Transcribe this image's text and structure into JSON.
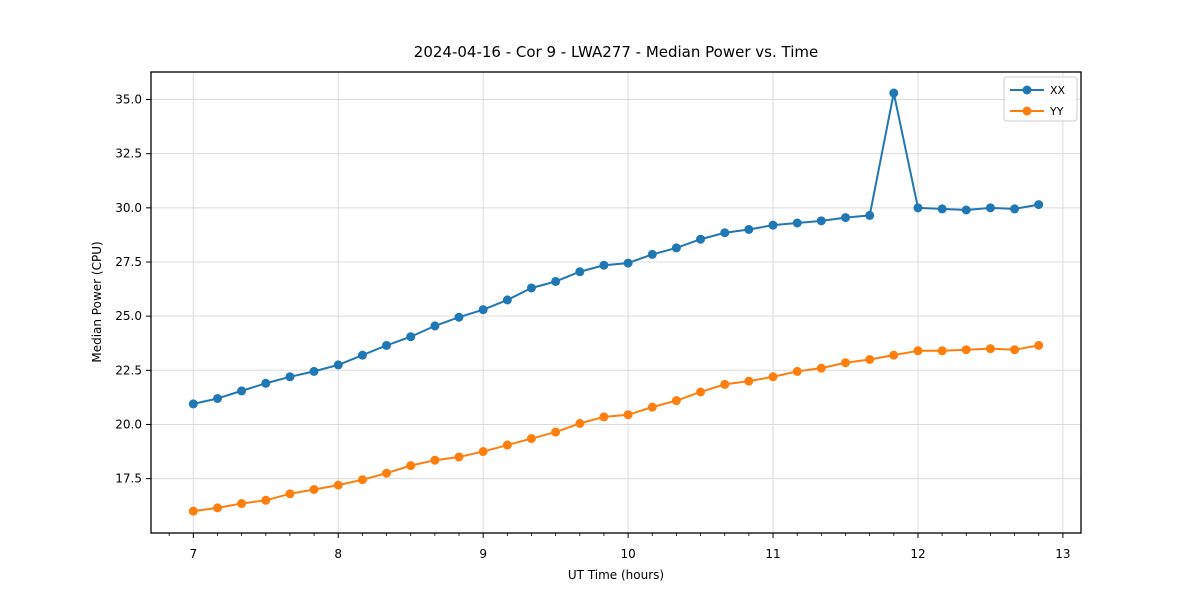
{
  "figure": {
    "title": "2024-04-16 - Cor 9 - LWA277 - Median Power vs. Time",
    "xlabel": "UT Time (hours)",
    "ylabel": "Median Power (CPU)"
  },
  "chart_data": {
    "type": "line",
    "title": "2024-04-16 - Cor 9 - LWA277 - Median Power vs. Time",
    "xlabel": "UT Time (hours)",
    "ylabel": "Median Power (CPU)",
    "xlim": [
      6.708,
      13.125
    ],
    "ylim": [
      14.99,
      36.27
    ],
    "xticks": [
      7,
      8,
      9,
      10,
      11,
      12,
      13
    ],
    "yticks": [
      17.5,
      20.0,
      22.5,
      25.0,
      27.5,
      30.0,
      32.5,
      35.0
    ],
    "minor_xtick_step": 0.16667,
    "grid": true,
    "legend_position": "upper right",
    "background_color": "#ffffff",
    "grid_color": "#dcdcdc",
    "spine_color": "#000000",
    "x": [
      7.0,
      7.167,
      7.333,
      7.5,
      7.667,
      7.833,
      8.0,
      8.167,
      8.333,
      8.5,
      8.667,
      8.833,
      9.0,
      9.167,
      9.333,
      9.5,
      9.667,
      9.833,
      10.0,
      10.167,
      10.333,
      10.5,
      10.667,
      10.833,
      11.0,
      11.167,
      11.333,
      11.5,
      11.667,
      11.833,
      12.0,
      12.167,
      12.333,
      12.5,
      12.667,
      12.833
    ],
    "series": [
      {
        "name": "XX",
        "color": "#1f77b4",
        "marker": "circle",
        "values": [
          20.95,
          21.2,
          21.55,
          21.9,
          22.2,
          22.45,
          22.75,
          23.2,
          23.65,
          24.05,
          24.55,
          24.95,
          25.3,
          25.75,
          26.3,
          26.6,
          27.05,
          27.35,
          27.45,
          27.85,
          28.15,
          28.55,
          28.85,
          29.0,
          29.2,
          29.3,
          29.4,
          29.55,
          29.65,
          35.3,
          30.0,
          29.95,
          29.9,
          30.0,
          29.95,
          30.15
        ]
      },
      {
        "name": "YY",
        "color": "#ff7f0e",
        "marker": "circle",
        "values": [
          16.0,
          16.15,
          16.35,
          16.5,
          16.8,
          17.0,
          17.2,
          17.45,
          17.75,
          18.1,
          18.35,
          18.5,
          18.75,
          19.05,
          19.35,
          19.65,
          20.05,
          20.35,
          20.45,
          20.8,
          21.1,
          21.5,
          21.85,
          22.0,
          22.2,
          22.45,
          22.6,
          22.85,
          23.0,
          23.2,
          23.4,
          23.4,
          23.45,
          23.5,
          23.45,
          23.65
        ]
      }
    ]
  }
}
